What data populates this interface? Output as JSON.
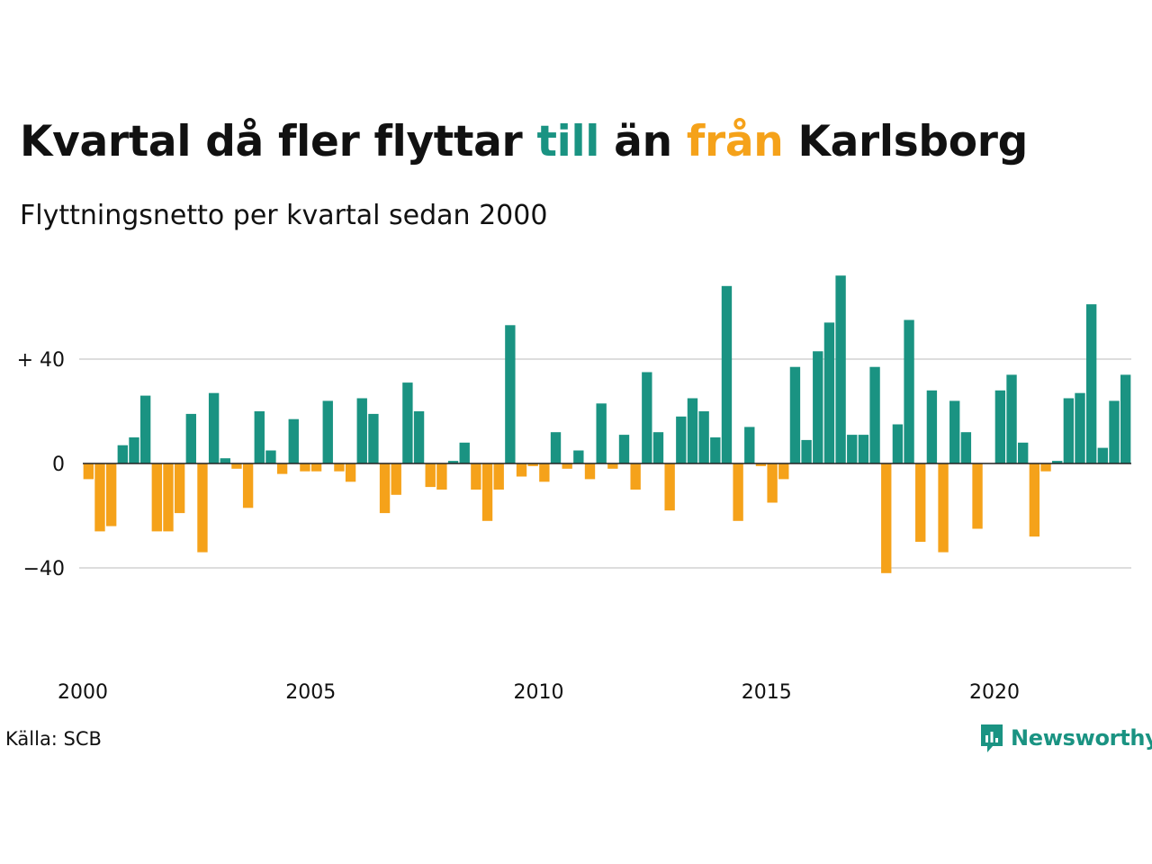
{
  "title": {
    "part1": "Kvartal då fler flyttar ",
    "in_word": "till",
    "part2": " än ",
    "out_word": "från",
    "part3": " Karlsborg"
  },
  "subtitle": "Flyttningsnetto per kvartal sedan 2000",
  "source": "Källa: SCB",
  "brand": {
    "name": "Newsworthy",
    "icon": "newsworthy-logo-icon"
  },
  "colors": {
    "positive": "#1a9382",
    "negative": "#f5a21a",
    "grid": "#dddddd",
    "axis": "#222222"
  },
  "chart_data": {
    "type": "bar",
    "title": "Kvartal då fler flyttar till än från Karlsborg",
    "subtitle": "Flyttningsnetto per kvartal sedan 2000",
    "start_year": 2000,
    "periods_per_year": 4,
    "values": [
      -6,
      -26,
      -24,
      7,
      10,
      26,
      -26,
      -26,
      -19,
      19,
      -34,
      27,
      2,
      -2,
      -17,
      20,
      5,
      -4,
      17,
      -3,
      -3,
      24,
      -3,
      -7,
      25,
      19,
      -19,
      -12,
      31,
      20,
      -9,
      -10,
      1,
      8,
      -10,
      -22,
      -10,
      53,
      -5,
      -1,
      -7,
      12,
      -2,
      5,
      -6,
      23,
      -2,
      11,
      -10,
      35,
      12,
      -18,
      18,
      25,
      20,
      10,
      68,
      -22,
      14,
      -1,
      -15,
      -6,
      37,
      9,
      43,
      54,
      72,
      11,
      11,
      37,
      -42,
      15,
      55,
      -30,
      28,
      -34,
      24,
      12,
      -25,
      0,
      28,
      34,
      8,
      -28,
      -3,
      1,
      25,
      27,
      61,
      6,
      24,
      34
    ],
    "y_ticks": [
      {
        "value": 40,
        "label": "+ 40"
      },
      {
        "value": 0,
        "label": "0"
      },
      {
        "value": -40,
        "label": "−40"
      }
    ],
    "x_ticks": [
      {
        "year": 2000,
        "label": "2000"
      },
      {
        "year": 2005,
        "label": "2005"
      },
      {
        "year": 2010,
        "label": "2010"
      },
      {
        "year": 2015,
        "label": "2015"
      },
      {
        "year": 2020,
        "label": "2020"
      }
    ],
    "ylim": [
      -80,
      80
    ],
    "grid": true,
    "legend": "none"
  }
}
